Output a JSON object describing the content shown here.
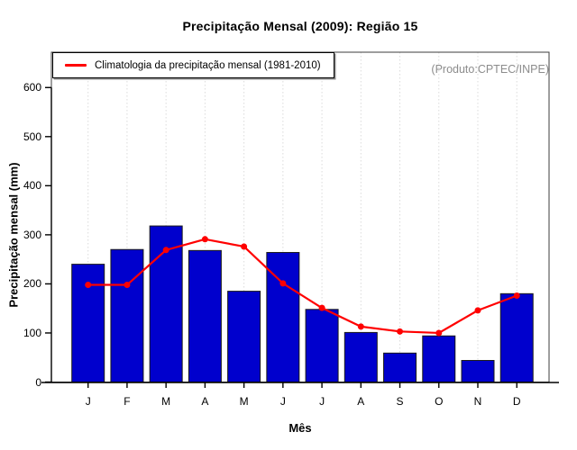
{
  "title": "Precipitação Mensal (2009): Região 15",
  "annotation": "(Produto:CPTEC/INPE)",
  "legend": {
    "label": "Climatologia da precipitação mensal (1981-2010)",
    "line_color": "#FF0000"
  },
  "axes": {
    "y_label": "Precipitação mensal (mm)",
    "x_label": "Mês"
  },
  "colors": {
    "bar_fill": "#0000CD",
    "bar_border": "#1a1a1a",
    "line": "#FF0000",
    "grid": "#DBDBDB",
    "frame": "#3c3c3c",
    "axis": "#000000",
    "annotation_text": "#8C8C8C"
  },
  "chart_data": {
    "type": "bar",
    "title": "Precipitação Mensal (2009): Região 15",
    "xlabel": "Mês",
    "ylabel": "Precipitação mensal (mm)",
    "categories": [
      "J",
      "F",
      "M",
      "A",
      "M",
      "J",
      "J",
      "A",
      "S",
      "O",
      "N",
      "D"
    ],
    "series": [
      {
        "name": "Precipitação mensal 2009",
        "type": "bar",
        "color": "#0000CD",
        "values": [
          240,
          270,
          318,
          268,
          185,
          264,
          148,
          101,
          59,
          94,
          44,
          180
        ]
      },
      {
        "name": "Climatologia da precipitação mensal (1981-2010)",
        "type": "line",
        "color": "#FF0000",
        "values": [
          198,
          198,
          269,
          291,
          276,
          201,
          151,
          113,
          103,
          100,
          146,
          176
        ]
      }
    ],
    "y_ticks": [
      0,
      100,
      200,
      300,
      400,
      500,
      600
    ],
    "ylim": [
      0,
      672
    ],
    "grid": "vertical-dotted",
    "legend_position": "top-left",
    "annotation": "(Produto:CPTEC/INPE)"
  }
}
